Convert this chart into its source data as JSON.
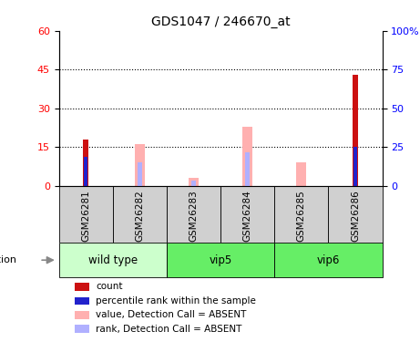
{
  "title": "GDS1047 / 246670_at",
  "samples": [
    "GSM26281",
    "GSM26282",
    "GSM26283",
    "GSM26284",
    "GSM26285",
    "GSM26286"
  ],
  "count_values": [
    18,
    0,
    0,
    0,
    0,
    43
  ],
  "percentile_values": [
    11,
    0,
    0,
    0,
    0,
    15
  ],
  "absent_value": [
    0,
    16,
    3,
    23,
    9,
    0
  ],
  "absent_rank": [
    0,
    9,
    2,
    13,
    0,
    0
  ],
  "ylim_left": [
    0,
    60
  ],
  "ylim_right": [
    0,
    100
  ],
  "yticks_left": [
    0,
    15,
    30,
    45,
    60
  ],
  "yticks_right": [
    0,
    25,
    50,
    75,
    100
  ],
  "count_color": "#cc1111",
  "percentile_color": "#2222cc",
  "absent_value_color": "#ffb0b0",
  "absent_rank_color": "#b0b0ff",
  "group_defs": [
    {
      "name": "wild type",
      "start": 0,
      "end": 1,
      "color": "#ccffcc"
    },
    {
      "name": "vip5",
      "start": 2,
      "end": 3,
      "color": "#66ee66"
    },
    {
      "name": "vip6",
      "start": 4,
      "end": 5,
      "color": "#66ee66"
    }
  ],
  "legend_items": [
    {
      "color": "#cc1111",
      "label": "count"
    },
    {
      "color": "#2222cc",
      "label": "percentile rank within the sample"
    },
    {
      "color": "#ffb0b0",
      "label": "value, Detection Call = ABSENT"
    },
    {
      "color": "#b0b0ff",
      "label": "rank, Detection Call = ABSENT"
    }
  ]
}
